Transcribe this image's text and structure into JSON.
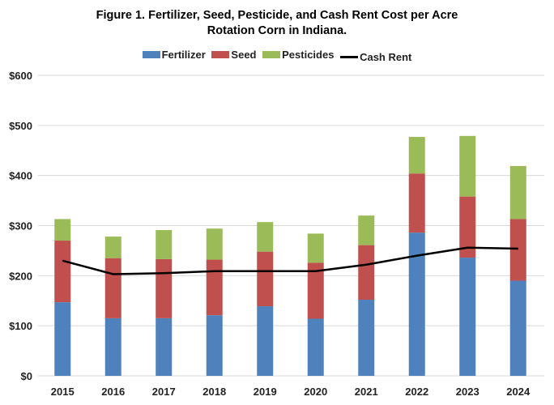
{
  "chart_data": {
    "type": "bar",
    "stacked": true,
    "title": "Figure 1. Fertilizer, Seed, Pesticide, and Cash Rent Cost per Acre",
    "subtitle": "Rotation Corn in Indiana.",
    "xlabel": "",
    "ylabel": "",
    "ylim": [
      0,
      600
    ],
    "yticks": [
      "$0",
      "$100",
      "$200",
      "$300",
      "$400",
      "$500",
      "$600"
    ],
    "grid": true,
    "legend_position": "top",
    "categories": [
      "2015",
      "2016",
      "2017",
      "2018",
      "2019",
      "2020",
      "2021",
      "2022",
      "2023",
      "2024"
    ],
    "series": [
      {
        "name": "Fertilizer",
        "type": "bar",
        "color": "#4f81bd",
        "values": [
          147,
          115,
          115,
          121,
          139,
          114,
          152,
          286,
          236,
          190
        ]
      },
      {
        "name": "Seed",
        "type": "bar",
        "color": "#c0504d",
        "values": [
          123,
          120,
          118,
          111,
          109,
          112,
          109,
          118,
          122,
          123
        ]
      },
      {
        "name": "Pesticides",
        "type": "bar",
        "color": "#9bbb59",
        "values": [
          43,
          43,
          58,
          62,
          59,
          58,
          59,
          73,
          121,
          106
        ]
      },
      {
        "name": "Cash Rent",
        "type": "line",
        "color": "#000000",
        "values": [
          230,
          203,
          205,
          209,
          209,
          209,
          222,
          240,
          256,
          254
        ]
      }
    ]
  }
}
